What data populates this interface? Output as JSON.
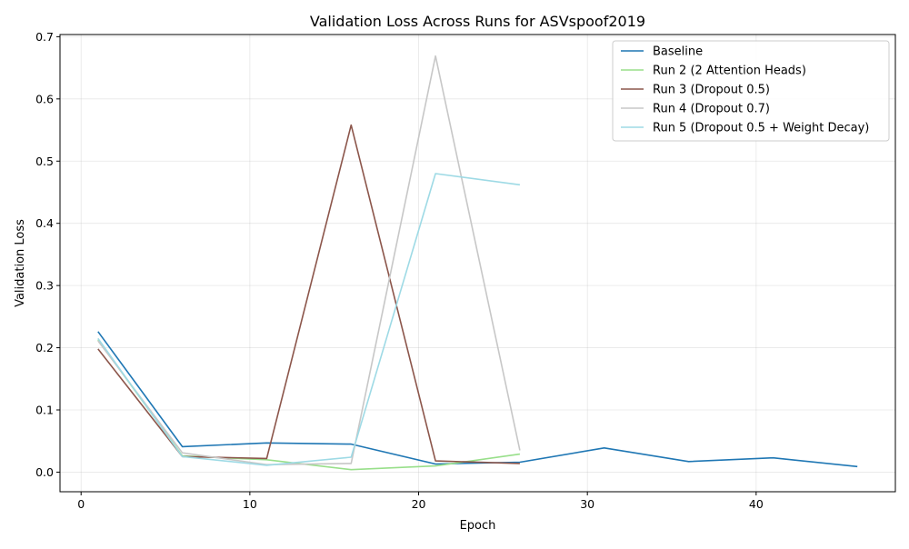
{
  "chart_data": {
    "type": "line",
    "title": "Validation Loss Across Runs for ASVspoof2019",
    "xlabel": "Epoch",
    "ylabel": "Validation Loss",
    "xlim": [
      -1.25,
      48.25
    ],
    "ylim": [
      -0.0315,
      0.7035
    ],
    "xticks": [
      0,
      10,
      20,
      30,
      40
    ],
    "yticks": [
      0.0,
      0.1,
      0.2,
      0.3,
      0.4,
      0.5,
      0.6,
      0.7
    ],
    "xtick_labels": [
      "0",
      "10",
      "20",
      "30",
      "40"
    ],
    "ytick_labels": [
      "0.0",
      "0.1",
      "0.2",
      "0.3",
      "0.4",
      "0.5",
      "0.6",
      "0.7"
    ],
    "grid": true,
    "legend_position": "top-right",
    "series": [
      {
        "name": "Baseline",
        "color": "#1f77b4",
        "x": [
          1,
          6,
          11,
          16,
          21,
          26,
          31,
          36,
          41,
          46
        ],
        "y": [
          0.226,
          0.041,
          0.047,
          0.045,
          0.013,
          0.016,
          0.039,
          0.017,
          0.023,
          0.009
        ]
      },
      {
        "name": "Run 2 (2 Attention Heads)",
        "color": "#98df8a",
        "x": [
          1,
          6,
          11,
          16,
          21,
          26
        ],
        "y": [
          0.213,
          0.026,
          0.02,
          0.004,
          0.01,
          0.029
        ]
      },
      {
        "name": "Run 3 (Dropout 0.5)",
        "color": "#8c564b",
        "x": [
          1,
          6,
          11,
          16,
          21,
          26
        ],
        "y": [
          0.198,
          0.025,
          0.022,
          0.558,
          0.018,
          0.014
        ]
      },
      {
        "name": "Run 4 (Dropout 0.7)",
        "color": "#c7c7c7",
        "x": [
          1,
          6,
          11,
          16,
          21,
          26
        ],
        "y": [
          0.211,
          0.031,
          0.012,
          0.014,
          0.669,
          0.035
        ]
      },
      {
        "name": "Run 5 (Dropout 0.5 + Weight Decay)",
        "color": "#9edae5",
        "x": [
          1,
          6,
          11,
          16,
          21,
          26
        ],
        "y": [
          0.215,
          0.025,
          0.011,
          0.024,
          0.48,
          0.462
        ]
      }
    ]
  }
}
